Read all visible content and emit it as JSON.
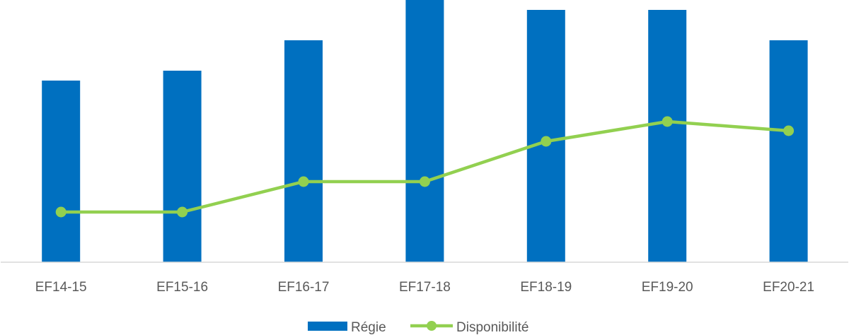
{
  "chart_data": {
    "type": "bar",
    "title": "",
    "xlabel": "",
    "ylabel": "",
    "grid": false,
    "legend_position": "bottom",
    "categories": [
      "EF14-15",
      "EF15-16",
      "EF16-17",
      "EF17-18",
      "EF18-19",
      "EF19-20",
      "EF20-21"
    ],
    "series": [
      {
        "name": "Régie",
        "type": "bar",
        "color": "#0070c0",
        "values": [
          257,
          271,
          314,
          371,
          357,
          357,
          314
        ]
      },
      {
        "name": "Disponibilité",
        "type": "line",
        "color": "#92d050",
        "values": [
          71,
          71,
          114,
          114,
          171,
          199,
          186
        ]
      }
    ],
    "ylim": [
      0,
      371
    ],
    "note": "No y-axis shown; values are relative heights estimated from pixel positions."
  },
  "legend": {
    "items": [
      {
        "label": "Régie",
        "kind": "bar",
        "color": "#0070c0"
      },
      {
        "label": "Disponibilité",
        "kind": "line-marker",
        "color": "#92d050"
      }
    ]
  },
  "colors": {
    "axis": "#d9d9d9",
    "text": "#595959"
  }
}
